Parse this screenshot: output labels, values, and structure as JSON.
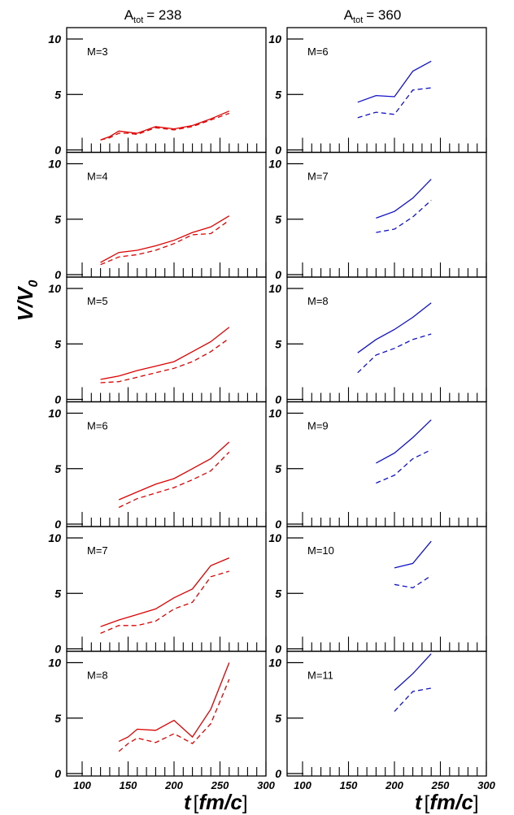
{
  "chart_data": {
    "type": "line",
    "ylabel": {
      "main": "V/V",
      "sub": "0"
    },
    "xlabel": {
      "var": "t",
      "open": "[",
      "unit": "fm/c",
      "close": "]"
    },
    "xlim": [
      100,
      300
    ],
    "ylim": [
      0,
      10
    ],
    "x_ticks": [
      "100",
      "150",
      "200",
      "250",
      "300"
    ],
    "y_ticks": [
      "0",
      "5",
      "10"
    ],
    "columns": [
      {
        "title_prefix": "A",
        "title_sub": "tot",
        "title_value": "= 238",
        "color": "#e00000",
        "panels": [
          {
            "label": "M=3",
            "series": [
              {
                "style": "solid",
                "x": [
                  120,
                  130,
                  140,
                  150,
                  160,
                  180,
                  200,
                  220,
                  240,
                  260
                ],
                "y": [
                  0.9,
                  1.2,
                  1.7,
                  1.6,
                  1.5,
                  2.1,
                  1.9,
                  2.2,
                  2.8,
                  3.5
                ]
              },
              {
                "style": "dashed",
                "x": [
                  120,
                  130,
                  140,
                  150,
                  160,
                  180,
                  200,
                  220,
                  240,
                  260
                ],
                "y": [
                  0.9,
                  1.1,
                  1.5,
                  1.5,
                  1.4,
                  2.0,
                  1.8,
                  2.1,
                  2.7,
                  3.3
                ]
              }
            ]
          },
          {
            "label": "M=4",
            "series": [
              {
                "style": "solid",
                "x": [
                  120,
                  140,
                  160,
                  180,
                  200,
                  220,
                  240,
                  260
                ],
                "y": [
                  1.1,
                  2.0,
                  2.2,
                  2.6,
                  3.1,
                  3.8,
                  4.3,
                  5.3
                ]
              },
              {
                "style": "dashed",
                "x": [
                  120,
                  140,
                  160,
                  180,
                  200,
                  220,
                  240,
                  260
                ],
                "y": [
                  0.9,
                  1.6,
                  1.8,
                  2.2,
                  2.8,
                  3.6,
                  3.7,
                  4.9
                ]
              }
            ]
          },
          {
            "label": "M=5",
            "series": [
              {
                "style": "solid",
                "x": [
                  120,
                  140,
                  160,
                  180,
                  200,
                  220,
                  240,
                  260
                ],
                "y": [
                  1.8,
                  2.1,
                  2.6,
                  3.0,
                  3.4,
                  4.3,
                  5.2,
                  6.5
                ]
              },
              {
                "style": "dashed",
                "x": [
                  120,
                  140,
                  160,
                  180,
                  200,
                  220,
                  240,
                  260
                ],
                "y": [
                  1.5,
                  1.6,
                  2.0,
                  2.4,
                  2.8,
                  3.4,
                  4.3,
                  5.5
                ]
              }
            ]
          },
          {
            "label": "M=6",
            "series": [
              {
                "style": "solid",
                "x": [
                  140,
                  160,
                  180,
                  200,
                  220,
                  240,
                  260
                ],
                "y": [
                  2.2,
                  2.9,
                  3.6,
                  4.1,
                  5.0,
                  5.9,
                  7.4
                ]
              },
              {
                "style": "dashed",
                "x": [
                  140,
                  160,
                  180,
                  200,
                  220,
                  240,
                  260
                ],
                "y": [
                  1.5,
                  2.3,
                  2.8,
                  3.3,
                  4.0,
                  4.8,
                  6.5
                ]
              }
            ]
          },
          {
            "label": "M=7",
            "series": [
              {
                "style": "solid",
                "x": [
                  120,
                  140,
                  160,
                  180,
                  200,
                  220,
                  240,
                  260
                ],
                "y": [
                  2.0,
                  2.6,
                  3.1,
                  3.6,
                  4.6,
                  5.4,
                  7.5,
                  8.2
                ]
              },
              {
                "style": "dashed",
                "x": [
                  120,
                  140,
                  160,
                  180,
                  200,
                  220,
                  240,
                  260
                ],
                "y": [
                  1.4,
                  2.1,
                  2.1,
                  2.5,
                  3.6,
                  4.2,
                  6.5,
                  7.0
                ]
              }
            ]
          },
          {
            "label": "M=8",
            "series": [
              {
                "style": "solid",
                "x": [
                  140,
                  150,
                  160,
                  180,
                  200,
                  220,
                  240,
                  260
                ],
                "y": [
                  2.9,
                  3.3,
                  4.0,
                  3.9,
                  4.8,
                  3.3,
                  5.8,
                  10.0
                ]
              },
              {
                "style": "dashed",
                "x": [
                  140,
                  150,
                  160,
                  180,
                  200,
                  220,
                  240,
                  260
                ],
                "y": [
                  2.0,
                  2.7,
                  3.2,
                  2.8,
                  3.6,
                  2.7,
                  4.5,
                  8.5
                ]
              }
            ]
          }
        ]
      },
      {
        "title_prefix": "A",
        "title_sub": "tot",
        "title_value": "= 360",
        "color": "#1010cc",
        "panels": [
          {
            "label": "M=6",
            "series": [
              {
                "style": "solid",
                "x": [
                  160,
                  180,
                  200,
                  220,
                  240
                ],
                "y": [
                  4.3,
                  4.9,
                  4.8,
                  7.1,
                  8.0
                ]
              },
              {
                "style": "dashed",
                "x": [
                  160,
                  180,
                  200,
                  220,
                  240
                ],
                "y": [
                  2.9,
                  3.4,
                  3.2,
                  5.4,
                  5.6
                ]
              }
            ]
          },
          {
            "label": "M=7",
            "series": [
              {
                "style": "solid",
                "x": [
                  180,
                  200,
                  220,
                  240
                ],
                "y": [
                  5.1,
                  5.7,
                  6.9,
                  8.6
                ]
              },
              {
                "style": "dashed",
                "x": [
                  180,
                  200,
                  220,
                  240
                ],
                "y": [
                  3.8,
                  4.1,
                  5.2,
                  6.7
                ]
              }
            ]
          },
          {
            "label": "M=8",
            "series": [
              {
                "style": "solid",
                "x": [
                  160,
                  180,
                  200,
                  220,
                  240
                ],
                "y": [
                  4.2,
                  5.4,
                  6.3,
                  7.4,
                  8.7
                ]
              },
              {
                "style": "dashed",
                "x": [
                  160,
                  180,
                  200,
                  220,
                  240
                ],
                "y": [
                  2.4,
                  4.0,
                  4.6,
                  5.4,
                  5.9
                ]
              }
            ]
          },
          {
            "label": "M=9",
            "series": [
              {
                "style": "solid",
                "x": [
                  180,
                  200,
                  220,
                  240
                ],
                "y": [
                  5.5,
                  6.4,
                  7.8,
                  9.4
                ]
              },
              {
                "style": "dashed",
                "x": [
                  180,
                  200,
                  220,
                  240
                ],
                "y": [
                  3.7,
                  4.4,
                  5.9,
                  6.7
                ]
              }
            ]
          },
          {
            "label": "M=10",
            "series": [
              {
                "style": "solid",
                "x": [
                  200,
                  220,
                  240
                ],
                "y": [
                  7.3,
                  7.7,
                  9.7
                ]
              },
              {
                "style": "dashed",
                "x": [
                  200,
                  220,
                  240
                ],
                "y": [
                  5.8,
                  5.5,
                  6.6
                ]
              }
            ]
          },
          {
            "label": "M=11",
            "series": [
              {
                "style": "solid",
                "x": [
                  200,
                  220,
                  240
                ],
                "y": [
                  7.5,
                  9.0,
                  10.8
                ]
              },
              {
                "style": "dashed",
                "x": [
                  200,
                  220,
                  240
                ],
                "y": [
                  5.6,
                  7.4,
                  7.7
                ]
              }
            ]
          }
        ]
      }
    ]
  }
}
